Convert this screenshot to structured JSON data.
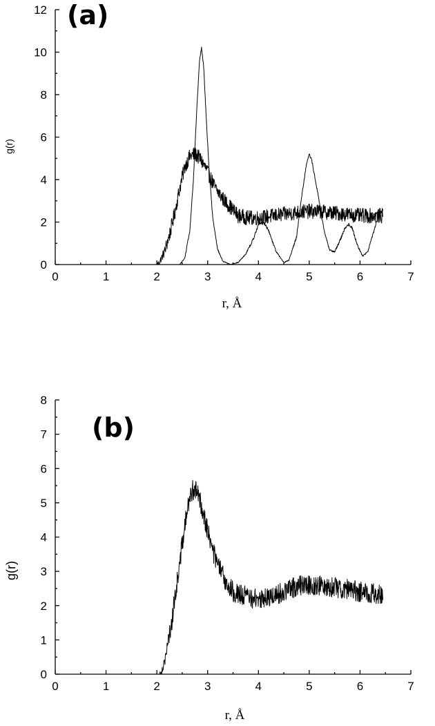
{
  "chart_data": [
    {
      "type": "line",
      "panel_label": "(a)",
      "xlabel": "r, Å",
      "ylabel": "g(r)",
      "xlim": [
        0,
        7
      ],
      "ylim": [
        0,
        12
      ],
      "x_ticks": [
        "0",
        "1",
        "2",
        "3",
        "4",
        "5",
        "6",
        "7"
      ],
      "y_ticks": [
        "0",
        "2",
        "4",
        "6",
        "8",
        "10",
        "12"
      ],
      "grid": false,
      "series": [
        {
          "noise": 0.35,
          "points": [
            [
              0.0,
              0
            ],
            [
              2.0,
              0
            ],
            [
              2.05,
              0.1
            ],
            [
              2.15,
              0.6
            ],
            [
              2.25,
              1.4
            ],
            [
              2.35,
              2.4
            ],
            [
              2.45,
              3.6
            ],
            [
              2.55,
              4.6
            ],
            [
              2.65,
              5.1
            ],
            [
              2.75,
              5.2
            ],
            [
              2.85,
              5.0
            ],
            [
              2.95,
              4.6
            ],
            [
              3.05,
              4.1
            ],
            [
              3.15,
              3.6
            ],
            [
              3.3,
              3.1
            ],
            [
              3.45,
              2.7
            ],
            [
              3.6,
              2.3
            ],
            [
              3.8,
              2.2
            ],
            [
              4.0,
              2.2
            ],
            [
              4.3,
              2.3
            ],
            [
              4.6,
              2.4
            ],
            [
              4.9,
              2.5
            ],
            [
              5.2,
              2.5
            ],
            [
              5.6,
              2.4
            ],
            [
              6.0,
              2.3
            ],
            [
              6.45,
              2.3
            ]
          ]
        },
        {
          "noise": 0.06,
          "points": [
            [
              0.0,
              0
            ],
            [
              2.45,
              0
            ],
            [
              2.55,
              0.3
            ],
            [
              2.65,
              1.6
            ],
            [
              2.72,
              4.0
            ],
            [
              2.78,
              7.0
            ],
            [
              2.84,
              9.6
            ],
            [
              2.88,
              10.2
            ],
            [
              2.92,
              9.4
            ],
            [
              2.96,
              7.5
            ],
            [
              3.02,
              4.8
            ],
            [
              3.1,
              2.2
            ],
            [
              3.2,
              0.7
            ],
            [
              3.3,
              0.15
            ],
            [
              3.45,
              0
            ],
            [
              3.6,
              0.1
            ],
            [
              3.75,
              0.5
            ],
            [
              3.9,
              1.2
            ],
            [
              4.0,
              1.9
            ],
            [
              4.1,
              2.0
            ],
            [
              4.2,
              1.6
            ],
            [
              4.35,
              0.6
            ],
            [
              4.5,
              0.1
            ],
            [
              4.6,
              0.2
            ],
            [
              4.75,
              1.3
            ],
            [
              4.85,
              3.2
            ],
            [
              4.95,
              4.8
            ],
            [
              5.0,
              5.2
            ],
            [
              5.05,
              4.9
            ],
            [
              5.15,
              3.6
            ],
            [
              5.3,
              1.5
            ],
            [
              5.4,
              0.7
            ],
            [
              5.5,
              0.6
            ],
            [
              5.6,
              1.1
            ],
            [
              5.7,
              1.7
            ],
            [
              5.78,
              1.9
            ],
            [
              5.85,
              1.7
            ],
            [
              5.95,
              0.9
            ],
            [
              6.05,
              0.4
            ],
            [
              6.15,
              0.6
            ],
            [
              6.25,
              1.4
            ],
            [
              6.35,
              2.2
            ],
            [
              6.45,
              2.6
            ]
          ]
        }
      ]
    },
    {
      "type": "line",
      "panel_label": "(b)",
      "xlabel": "r, Å",
      "ylabel": "g(r)",
      "xlim": [
        0,
        7
      ],
      "ylim": [
        0,
        8
      ],
      "x_ticks": [
        "0",
        "1",
        "2",
        "3",
        "4",
        "5",
        "6",
        "7"
      ],
      "y_ticks": [
        "0",
        "1",
        "2",
        "3",
        "4",
        "5",
        "6",
        "7",
        "8"
      ],
      "grid": false,
      "series": [
        {
          "noise": 0.3,
          "points": [
            [
              0.0,
              0
            ],
            [
              2.05,
              0
            ],
            [
              2.1,
              0.1
            ],
            [
              2.2,
              0.7
            ],
            [
              2.3,
              1.6
            ],
            [
              2.4,
              2.7
            ],
            [
              2.5,
              3.8
            ],
            [
              2.6,
              4.8
            ],
            [
              2.7,
              5.4
            ],
            [
              2.8,
              5.3
            ],
            [
              2.9,
              4.8
            ],
            [
              3.0,
              4.2
            ],
            [
              3.1,
              3.6
            ],
            [
              3.2,
              3.2
            ],
            [
              3.35,
              2.7
            ],
            [
              3.5,
              2.4
            ],
            [
              3.7,
              2.3
            ],
            [
              3.9,
              2.2
            ],
            [
              4.1,
              2.2
            ],
            [
              4.3,
              2.3
            ],
            [
              4.5,
              2.4
            ],
            [
              4.8,
              2.6
            ],
            [
              5.1,
              2.6
            ],
            [
              5.4,
              2.55
            ],
            [
              5.7,
              2.5
            ],
            [
              6.0,
              2.4
            ],
            [
              6.45,
              2.3
            ]
          ]
        }
      ]
    }
  ]
}
